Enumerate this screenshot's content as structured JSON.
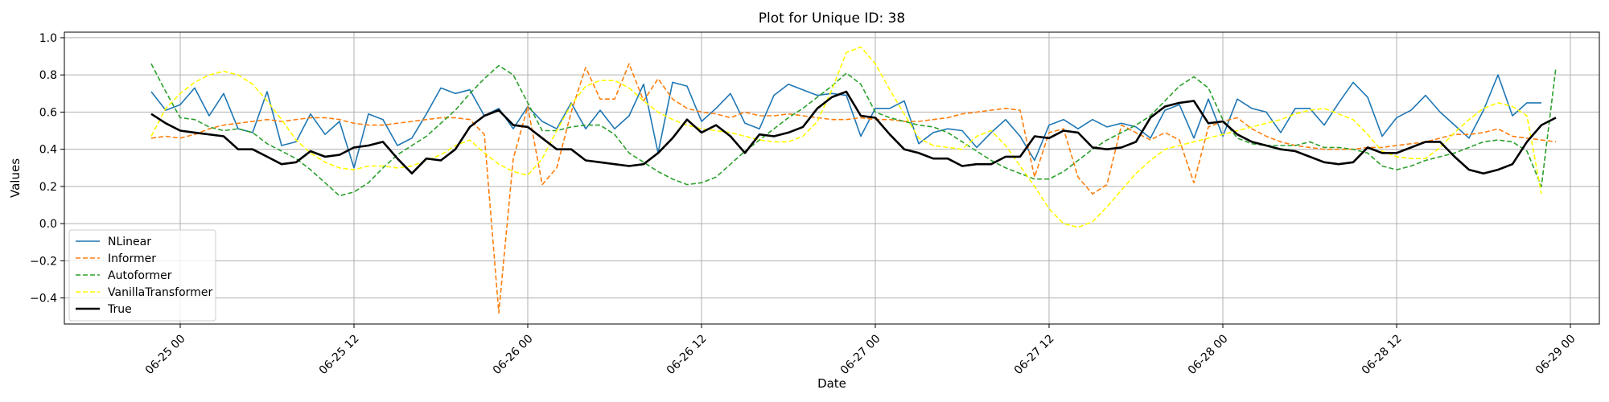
{
  "chart_data": {
    "type": "line",
    "title": "Plot for Unique ID: 38",
    "xlabel": "Date",
    "ylabel": "Values",
    "x_start": "06-24 22:00",
    "x_step_hours": 1,
    "xlim": [
      "06-24 16:00",
      "06-29 02:00"
    ],
    "ylim": [
      -0.54,
      1.03
    ],
    "xticks": [
      "06-25 00",
      "06-25 12",
      "06-26 00",
      "06-26 12",
      "06-27 00",
      "06-27 12",
      "06-28 00",
      "06-28 12",
      "06-29 00"
    ],
    "yticks": [
      "−0.4",
      "−0.2",
      "0.0",
      "0.2",
      "0.4",
      "0.6",
      "0.8",
      "1.0"
    ],
    "grid": true,
    "legend_position": "lower-left",
    "series": [
      {
        "name": "NLinear",
        "color": "#1f77b4",
        "style": "solid",
        "values": [
          0.71,
          0.61,
          0.64,
          0.73,
          0.58,
          0.7,
          0.51,
          0.49,
          0.71,
          0.42,
          0.44,
          0.59,
          0.48,
          0.55,
          0.3,
          0.59,
          0.56,
          0.42,
          0.46,
          0.59,
          0.73,
          0.7,
          0.72,
          0.58,
          0.62,
          0.51,
          0.63,
          0.55,
          0.51,
          0.65,
          0.51,
          0.61,
          0.51,
          0.58,
          0.75,
          0.38,
          0.76,
          0.74,
          0.55,
          0.62,
          0.7,
          0.54,
          0.51,
          0.69,
          0.75,
          0.72,
          0.69,
          0.7,
          0.69,
          0.47,
          0.62,
          0.62,
          0.66,
          0.43,
          0.49,
          0.51,
          0.5,
          0.41,
          0.49,
          0.56,
          0.47,
          0.34,
          0.53,
          0.56,
          0.51,
          0.56,
          0.52,
          0.54,
          0.52,
          0.46,
          0.61,
          0.64,
          0.46,
          0.67,
          0.47,
          0.67,
          0.62,
          0.6,
          0.49,
          0.62,
          0.62,
          0.53,
          0.65,
          0.76,
          0.68,
          0.47,
          0.57,
          0.61,
          0.69,
          0.6,
          0.53,
          0.46,
          0.61,
          0.8,
          0.58,
          0.65,
          0.65
        ]
      },
      {
        "name": "Informer",
        "color": "#ff7f0e",
        "style": "dashed",
        "values": [
          0.46,
          0.47,
          0.46,
          0.48,
          0.51,
          0.53,
          0.54,
          0.55,
          0.56,
          0.55,
          0.56,
          0.57,
          0.57,
          0.56,
          0.54,
          0.53,
          0.53,
          0.54,
          0.55,
          0.56,
          0.57,
          0.57,
          0.56,
          0.48,
          -0.48,
          0.35,
          0.63,
          0.21,
          0.3,
          0.6,
          0.84,
          0.67,
          0.67,
          0.86,
          0.66,
          0.78,
          0.67,
          0.62,
          0.6,
          0.59,
          0.57,
          0.6,
          0.58,
          0.58,
          0.59,
          0.58,
          0.57,
          0.56,
          0.56,
          0.57,
          0.56,
          0.56,
          0.55,
          0.55,
          0.56,
          0.57,
          0.59,
          0.6,
          0.61,
          0.62,
          0.61,
          0.25,
          0.49,
          0.51,
          0.25,
          0.16,
          0.21,
          0.53,
          0.49,
          0.45,
          0.49,
          0.45,
          0.22,
          0.52,
          0.55,
          0.57,
          0.51,
          0.47,
          0.44,
          0.42,
          0.41,
          0.4,
          0.4,
          0.4,
          0.41,
          0.41,
          0.42,
          0.43,
          0.44,
          0.46,
          0.48,
          0.48,
          0.49,
          0.51,
          0.47,
          0.46,
          0.45,
          0.44
        ]
      },
      {
        "name": "Autoformer",
        "color": "#2ca02c",
        "style": "dashed",
        "values": [
          0.86,
          0.71,
          0.57,
          0.56,
          0.52,
          0.5,
          0.51,
          0.49,
          0.43,
          0.39,
          0.35,
          0.29,
          0.22,
          0.15,
          0.17,
          0.22,
          0.3,
          0.37,
          0.42,
          0.47,
          0.54,
          0.61,
          0.7,
          0.78,
          0.85,
          0.8,
          0.65,
          0.5,
          0.5,
          0.52,
          0.53,
          0.53,
          0.48,
          0.38,
          0.33,
          0.28,
          0.24,
          0.21,
          0.22,
          0.25,
          0.32,
          0.39,
          0.45,
          0.51,
          0.57,
          0.62,
          0.68,
          0.74,
          0.81,
          0.75,
          0.6,
          0.57,
          0.55,
          0.53,
          0.52,
          0.49,
          0.44,
          0.39,
          0.34,
          0.3,
          0.27,
          0.24,
          0.24,
          0.28,
          0.34,
          0.4,
          0.45,
          0.49,
          0.53,
          0.58,
          0.66,
          0.74,
          0.79,
          0.73,
          0.56,
          0.46,
          0.43,
          0.42,
          0.42,
          0.42,
          0.44,
          0.41,
          0.41,
          0.4,
          0.38,
          0.31,
          0.29,
          0.31,
          0.34,
          0.36,
          0.38,
          0.41,
          0.44,
          0.45,
          0.44,
          0.39,
          0.2,
          0.84
        ]
      },
      {
        "name": "VanillaTransformer",
        "color": "#ffff00",
        "style": "dashed",
        "values": [
          0.47,
          0.62,
          0.7,
          0.76,
          0.8,
          0.82,
          0.8,
          0.75,
          0.66,
          0.56,
          0.45,
          0.38,
          0.33,
          0.3,
          0.29,
          0.31,
          0.31,
          0.3,
          0.31,
          0.34,
          0.37,
          0.42,
          0.45,
          0.38,
          0.32,
          0.28,
          0.26,
          0.35,
          0.5,
          0.64,
          0.74,
          0.77,
          0.77,
          0.73,
          0.66,
          0.6,
          0.56,
          0.53,
          0.51,
          0.5,
          0.49,
          0.47,
          0.45,
          0.44,
          0.44,
          0.47,
          0.55,
          0.72,
          0.92,
          0.95,
          0.86,
          0.72,
          0.59,
          0.46,
          0.42,
          0.41,
          0.4,
          0.47,
          0.5,
          0.42,
          0.31,
          0.2,
          0.08,
          0.0,
          -0.02,
          0.01,
          0.09,
          0.18,
          0.27,
          0.34,
          0.4,
          0.42,
          0.44,
          0.46,
          0.48,
          0.5,
          0.52,
          0.54,
          0.56,
          0.59,
          0.61,
          0.62,
          0.59,
          0.56,
          0.48,
          0.39,
          0.36,
          0.35,
          0.35,
          0.41,
          0.49,
          0.56,
          0.62,
          0.65,
          0.63,
          0.58,
          0.16
        ]
      },
      {
        "name": "True",
        "color": "#000000",
        "style": "solid",
        "values": [
          0.59,
          0.54,
          0.5,
          0.49,
          0.48,
          0.47,
          0.4,
          0.4,
          0.36,
          0.32,
          0.33,
          0.39,
          0.36,
          0.37,
          0.41,
          0.42,
          0.44,
          0.35,
          0.27,
          0.35,
          0.34,
          0.4,
          0.52,
          0.58,
          0.61,
          0.53,
          0.52,
          0.46,
          0.4,
          0.4,
          0.34,
          0.33,
          0.32,
          0.31,
          0.32,
          0.38,
          0.46,
          0.56,
          0.49,
          0.53,
          0.47,
          0.38,
          0.48,
          0.47,
          0.49,
          0.52,
          0.62,
          0.68,
          0.71,
          0.58,
          0.57,
          0.48,
          0.4,
          0.38,
          0.35,
          0.35,
          0.31,
          0.32,
          0.32,
          0.36,
          0.36,
          0.47,
          0.46,
          0.5,
          0.49,
          0.41,
          0.4,
          0.41,
          0.44,
          0.57,
          0.63,
          0.65,
          0.66,
          0.54,
          0.55,
          0.48,
          0.44,
          0.42,
          0.4,
          0.39,
          0.36,
          0.33,
          0.32,
          0.33,
          0.41,
          0.38,
          0.38,
          0.41,
          0.44,
          0.44,
          0.36,
          0.29,
          0.27,
          0.29,
          0.32,
          0.44,
          0.53,
          0.57
        ]
      }
    ]
  }
}
